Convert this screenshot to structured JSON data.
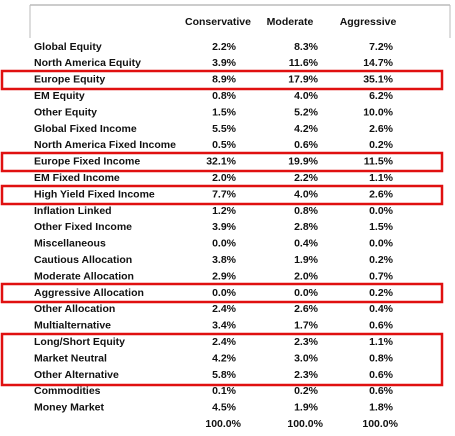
{
  "table": {
    "headers": [
      "Conservative",
      "Moderate",
      "Aggressive"
    ],
    "rows": [
      {
        "label": "Global Equity",
        "values": [
          "2.2%",
          "8.3%",
          "7.2%"
        ]
      },
      {
        "label": "North America Equity",
        "values": [
          "3.9%",
          "11.6%",
          "14.7%"
        ]
      },
      {
        "label": "Europe Equity",
        "values": [
          "8.9%",
          "17.9%",
          "35.1%"
        ]
      },
      {
        "label": "EM Equity",
        "values": [
          "0.8%",
          "4.0%",
          "6.2%"
        ]
      },
      {
        "label": "Other Equity",
        "values": [
          "1.5%",
          "5.2%",
          "10.0%"
        ]
      },
      {
        "label": "Global Fixed Income",
        "values": [
          "5.5%",
          "4.2%",
          "2.6%"
        ]
      },
      {
        "label": "North America Fixed Income",
        "values": [
          "0.5%",
          "0.6%",
          "0.2%"
        ]
      },
      {
        "label": "Europe Fixed Income",
        "values": [
          "32.1%",
          "19.9%",
          "11.5%"
        ]
      },
      {
        "label": "EM Fixed Income",
        "values": [
          "2.0%",
          "2.2%",
          "1.1%"
        ]
      },
      {
        "label": "High Yield Fixed Income",
        "values": [
          "7.7%",
          "4.0%",
          "2.6%"
        ]
      },
      {
        "label": "Inflation Linked",
        "values": [
          "1.2%",
          "0.8%",
          "0.0%"
        ]
      },
      {
        "label": "Other Fixed Income",
        "values": [
          "3.9%",
          "2.8%",
          "1.5%"
        ]
      },
      {
        "label": "Miscellaneous",
        "values": [
          "0.0%",
          "0.4%",
          "0.0%"
        ]
      },
      {
        "label": "Cautious Allocation",
        "values": [
          "3.8%",
          "1.9%",
          "0.2%"
        ]
      },
      {
        "label": "Moderate Allocation",
        "values": [
          "2.9%",
          "2.0%",
          "0.7%"
        ]
      },
      {
        "label": "Aggressive Allocation",
        "values": [
          "0.0%",
          "0.0%",
          "0.2%"
        ]
      },
      {
        "label": "Other Allocation",
        "values": [
          "2.4%",
          "2.6%",
          "0.4%"
        ]
      },
      {
        "label": "Multialternative",
        "values": [
          "3.4%",
          "1.7%",
          "0.6%"
        ]
      },
      {
        "label": "Long/Short Equity",
        "values": [
          "2.4%",
          "2.3%",
          "1.1%"
        ]
      },
      {
        "label": "Market Neutral",
        "values": [
          "4.2%",
          "3.0%",
          "0.8%"
        ]
      },
      {
        "label": "Other Alternative",
        "values": [
          "5.8%",
          "2.3%",
          "0.6%"
        ]
      },
      {
        "label": "Commodities",
        "values": [
          "0.1%",
          "0.2%",
          "0.6%"
        ]
      },
      {
        "label": "Money Market",
        "values": [
          "4.5%",
          "1.9%",
          "1.8%"
        ]
      }
    ],
    "totals": [
      "100.0%",
      "100.0%",
      "100.0%"
    ]
  }
}
